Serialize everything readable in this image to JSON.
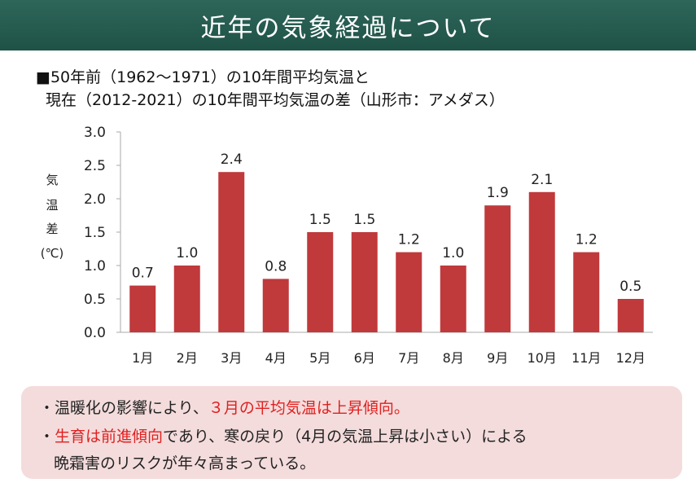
{
  "title": "近年の気象経過について",
  "subtitle_line1": "■50年前（1962～1971）の10年間平均気温と",
  "subtitle_line2": "現在（2012-2021）の10年間平均気温の差（山形市：アメダス）",
  "chart_data": {
    "type": "bar",
    "categories": [
      "1月",
      "2月",
      "3月",
      "4月",
      "5月",
      "6月",
      "7月",
      "8月",
      "9月",
      "10月",
      "11月",
      "12月"
    ],
    "values": [
      0.7,
      1.0,
      2.4,
      0.8,
      1.5,
      1.5,
      1.2,
      1.0,
      1.9,
      2.1,
      1.2,
      0.5
    ],
    "value_labels": [
      "0.7",
      "1.0",
      "2.4",
      "0.8",
      "1.5",
      "1.5",
      "1.2",
      "1.0",
      "1.9",
      "2.1",
      "1.2",
      "0.5"
    ],
    "ylim": [
      0,
      3.0
    ],
    "yticks": [
      "0.0",
      "0.5",
      "1.0",
      "1.5",
      "2.0",
      "2.5",
      "3.0"
    ],
    "ylabel_chars": [
      "気",
      "温",
      "差",
      "(℃)"
    ],
    "xlabel": "",
    "bar_color": "#c0393b",
    "grid": false
  },
  "notes": {
    "line1_prefix": "・温暖化の影響により、",
    "line1_highlight": "３月の平均気温は上昇傾向。",
    "line2_prefix": "・",
    "line2_highlight": "生育は前進傾向",
    "line2_rest": "であり、寒の戻り（4月の気温上昇は小さい）による",
    "line3": "晩霜害のリスクが年々高まっている。"
  },
  "colors": {
    "title_bg": "#245a4e",
    "note_bg": "#f4dcdc",
    "highlight": "#e02020"
  }
}
